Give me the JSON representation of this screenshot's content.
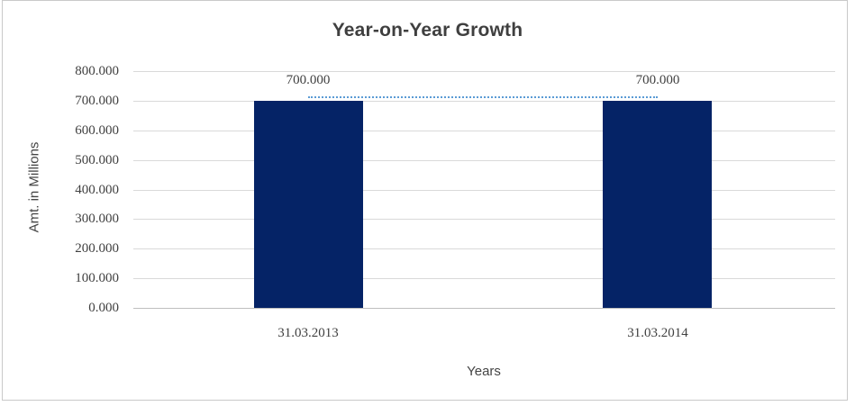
{
  "chart_data": {
    "type": "bar",
    "title": "Year-on-Year Growth",
    "xlabel": "Years",
    "ylabel": "Amt. in Millions",
    "categories": [
      "31.03.2013",
      "31.03.2014"
    ],
    "values": [
      700000,
      700000
    ],
    "bar_labels": [
      "700.000",
      "700.000"
    ],
    "ylim": [
      0,
      800000
    ],
    "ytick_step": 100000,
    "ytick_labels": [
      "800.000",
      "700.000",
      "600.000",
      "500.000",
      "400.000",
      "300.000",
      "200.000",
      "100.000",
      "0.000"
    ],
    "grid": true,
    "legend": "none",
    "bar_color": "#052366",
    "connector_line": {
      "style": "dotted",
      "color": "#5b9bd5",
      "values": [
        700000,
        700000
      ]
    },
    "text_color": "#404040",
    "gridline_color": "#d9d9d9"
  }
}
